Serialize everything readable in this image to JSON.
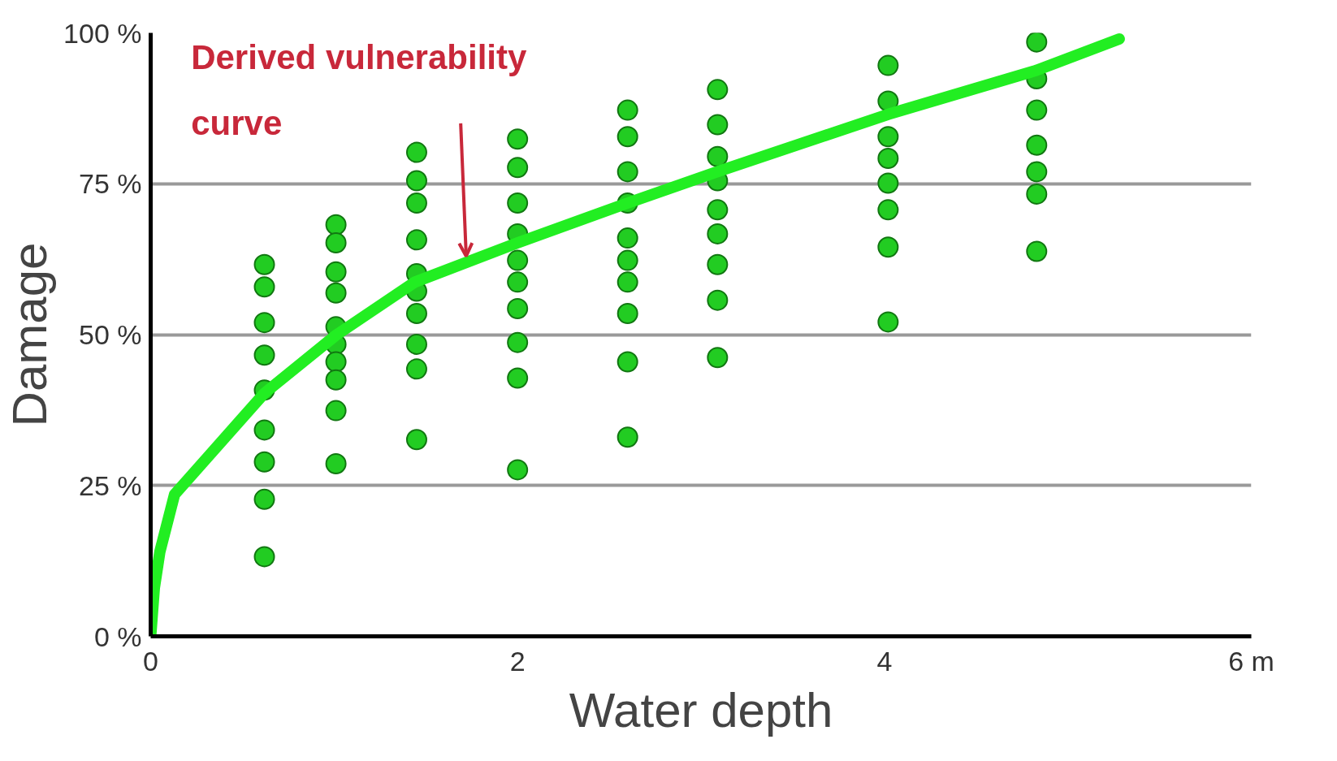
{
  "chart_data": {
    "type": "scatter",
    "xlabel": "Water depth",
    "ylabel": "Damage",
    "xlim": [
      0,
      6
    ],
    "ylim": [
      0,
      100
    ],
    "xticks": [
      0,
      2,
      4,
      {
        "value": 6,
        "label": "6 m"
      }
    ],
    "yticks": [
      {
        "value": 0,
        "label": "0 %"
      },
      {
        "value": 25,
        "label": "25 %"
      },
      {
        "value": 50,
        "label": "50 %"
      },
      {
        "value": 75,
        "label": "75 %"
      },
      {
        "value": 100,
        "label": "100 %"
      }
    ],
    "grid": "y",
    "annotations": [
      {
        "text": "Derived vulnerability\ncurve",
        "x": 1.72,
        "y": 63
      }
    ],
    "series": [
      {
        "marker": "circle",
        "color": "#22cc22",
        "x": [
          0.62,
          0.62,
          0.62,
          0.62,
          0.62,
          0.62,
          0.62,
          0.62,
          0.62,
          1.01,
          1.01,
          1.01,
          1.01,
          1.01,
          1.01,
          1.01,
          1.01,
          1.01,
          1.01,
          1.45,
          1.45,
          1.45,
          1.45,
          1.45,
          1.45,
          1.45,
          1.45,
          1.45,
          1.45,
          2.0,
          2.0,
          2.0,
          2.0,
          2.0,
          2.0,
          2.0,
          2.0,
          2.0,
          2.0,
          2.6,
          2.6,
          2.6,
          2.6,
          2.6,
          2.6,
          2.6,
          2.6,
          2.6,
          2.6,
          3.09,
          3.09,
          3.09,
          3.09,
          3.09,
          3.09,
          3.09,
          3.09,
          3.09,
          4.02,
          4.02,
          4.02,
          4.02,
          4.02,
          4.02,
          4.02,
          4.02,
          4.83,
          4.83,
          4.83,
          4.83,
          4.83,
          4.83,
          4.83
        ],
        "values": [
          61.6,
          57.9,
          52.0,
          46.6,
          40.8,
          34.2,
          28.9,
          22.7,
          13.2,
          68.2,
          65.2,
          60.4,
          56.9,
          51.3,
          48.4,
          45.5,
          42.5,
          37.4,
          28.6,
          80.2,
          75.5,
          71.8,
          65.7,
          60.1,
          57.2,
          53.5,
          48.4,
          44.3,
          32.6,
          82.4,
          77.7,
          71.8,
          66.7,
          62.3,
          58.7,
          54.3,
          48.7,
          42.8,
          27.6,
          87.2,
          82.8,
          77.0,
          71.8,
          66.0,
          62.3,
          58.7,
          53.5,
          45.5,
          33.0,
          90.6,
          84.8,
          79.5,
          75.5,
          70.7,
          66.7,
          61.6,
          55.7,
          46.2,
          94.6,
          88.7,
          82.8,
          79.2,
          75.1,
          70.7,
          64.5,
          52.1,
          98.5,
          92.4,
          87.2,
          81.4,
          77.0,
          73.3,
          63.8
        ]
      },
      {
        "type": "line",
        "color": "#22ee22",
        "line_style": "solid",
        "x": [
          0,
          0.02,
          0.05,
          0.13,
          0.62,
          1.01,
          1.44,
          2.0,
          2.6,
          3.09,
          4.02,
          4.83,
          5.28
        ],
        "values": [
          0,
          8,
          14,
          23.5,
          40.3,
          49.9,
          58.7,
          65.2,
          71.8,
          77,
          86.5,
          93.8,
          99
        ]
      }
    ]
  }
}
